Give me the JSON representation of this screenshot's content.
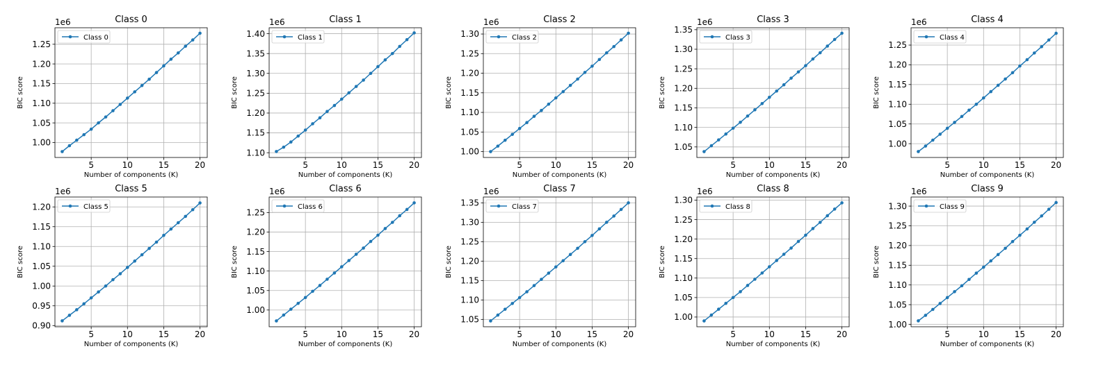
{
  "figure": {
    "line_color": "#1f77b4"
  },
  "chart_data": [
    {
      "type": "line",
      "title": "Class 0",
      "xlabel": "Number of components (K)",
      "ylabel": "BIC score",
      "offset_label": "1e6",
      "x": [
        1,
        2,
        3,
        4,
        5,
        6,
        7,
        8,
        9,
        10,
        11,
        12,
        13,
        14,
        15,
        16,
        17,
        18,
        19,
        20
      ],
      "xlim": [
        0,
        21
      ],
      "ylim": [
        0.962,
        1.292
      ],
      "xticks": [
        "5",
        "10",
        "15",
        "20"
      ],
      "xtick_values": [
        5,
        10,
        15,
        20
      ],
      "yticks": [
        "1.00",
        "1.05",
        "1.10",
        "1.15",
        "1.20",
        "1.25"
      ],
      "ytick_values": [
        1.0,
        1.05,
        1.1,
        1.15,
        1.2,
        1.25
      ],
      "grid": true,
      "legend_position": "upper left",
      "series": [
        {
          "name": "Class 0",
          "values": [
            0.977,
            0.992,
            1.006,
            1.02,
            1.034,
            1.05,
            1.065,
            1.081,
            1.097,
            1.113,
            1.129,
            1.145,
            1.161,
            1.178,
            1.195,
            1.212,
            1.228,
            1.245,
            1.261,
            1.278
          ]
        }
      ]
    },
    {
      "type": "line",
      "title": "Class 1",
      "xlabel": "Number of components (K)",
      "ylabel": "BIC score",
      "offset_label": "1e6",
      "x": [
        1,
        2,
        3,
        4,
        5,
        6,
        7,
        8,
        9,
        10,
        11,
        12,
        13,
        14,
        15,
        16,
        17,
        18,
        19,
        20
      ],
      "xlim": [
        0,
        21
      ],
      "ylim": [
        1.088,
        1.415
      ],
      "xticks": [
        "5",
        "10",
        "15",
        "20"
      ],
      "xtick_values": [
        5,
        10,
        15,
        20
      ],
      "yticks": [
        "1.10",
        "1.15",
        "1.20",
        "1.25",
        "1.30",
        "1.35",
        "1.40"
      ],
      "ytick_values": [
        1.1,
        1.15,
        1.2,
        1.25,
        1.3,
        1.35,
        1.4
      ],
      "grid": true,
      "legend_position": "upper left",
      "series": [
        {
          "name": "Class 1",
          "values": [
            1.103,
            1.114,
            1.127,
            1.142,
            1.157,
            1.173,
            1.188,
            1.204,
            1.219,
            1.235,
            1.251,
            1.267,
            1.283,
            1.3,
            1.317,
            1.334,
            1.35,
            1.368,
            1.385,
            1.402
          ]
        }
      ]
    },
    {
      "type": "line",
      "title": "Class 2",
      "xlabel": "Number of components (K)",
      "ylabel": "BIC score",
      "offset_label": "1e6",
      "x": [
        1,
        2,
        3,
        4,
        5,
        6,
        7,
        8,
        9,
        10,
        11,
        12,
        13,
        14,
        15,
        16,
        17,
        18,
        19,
        20
      ],
      "xlim": [
        0,
        21
      ],
      "ylim": [
        0.985,
        1.316
      ],
      "xticks": [
        "5",
        "10",
        "15",
        "20"
      ],
      "xtick_values": [
        5,
        10,
        15,
        20
      ],
      "yticks": [
        "1.00",
        "1.05",
        "1.10",
        "1.15",
        "1.20",
        "1.25",
        "1.30"
      ],
      "ytick_values": [
        1.0,
        1.05,
        1.1,
        1.15,
        1.2,
        1.25,
        1.3
      ],
      "grid": true,
      "legend_position": "upper left",
      "series": [
        {
          "name": "Class 2",
          "values": [
            1.0,
            1.014,
            1.029,
            1.044,
            1.059,
            1.074,
            1.09,
            1.105,
            1.121,
            1.137,
            1.153,
            1.169,
            1.185,
            1.202,
            1.218,
            1.235,
            1.252,
            1.268,
            1.285,
            1.302
          ]
        }
      ]
    },
    {
      "type": "line",
      "title": "Class 3",
      "xlabel": "Number of components (K)",
      "ylabel": "BIC score",
      "offset_label": "1e6",
      "x": [
        1,
        2,
        3,
        4,
        5,
        6,
        7,
        8,
        9,
        10,
        11,
        12,
        13,
        14,
        15,
        16,
        17,
        18,
        19,
        20
      ],
      "xlim": [
        0,
        21
      ],
      "ylim": [
        1.023,
        1.355
      ],
      "xticks": [
        "5",
        "10",
        "15",
        "20"
      ],
      "xtick_values": [
        5,
        10,
        15,
        20
      ],
      "yticks": [
        "1.05",
        "1.10",
        "1.15",
        "1.20",
        "1.25",
        "1.30",
        "1.35"
      ],
      "ytick_values": [
        1.05,
        1.1,
        1.15,
        1.2,
        1.25,
        1.3,
        1.35
      ],
      "grid": true,
      "legend_position": "upper left",
      "series": [
        {
          "name": "Class 3",
          "values": [
            1.038,
            1.053,
            1.068,
            1.083,
            1.098,
            1.113,
            1.129,
            1.145,
            1.161,
            1.177,
            1.193,
            1.209,
            1.226,
            1.242,
            1.258,
            1.275,
            1.291,
            1.308,
            1.325,
            1.341
          ]
        }
      ]
    },
    {
      "type": "line",
      "title": "Class 4",
      "xlabel": "Number of components (K)",
      "ylabel": "BIC score",
      "offset_label": "1e6",
      "x": [
        1,
        2,
        3,
        4,
        5,
        6,
        7,
        8,
        9,
        10,
        11,
        12,
        13,
        14,
        15,
        16,
        17,
        18,
        19,
        20
      ],
      "xlim": [
        0,
        21
      ],
      "ylim": [
        0.965,
        1.294
      ],
      "xticks": [
        "5",
        "10",
        "15",
        "20"
      ],
      "xtick_values": [
        5,
        10,
        15,
        20
      ],
      "yticks": [
        "1.00",
        "1.05",
        "1.10",
        "1.15",
        "1.20",
        "1.25"
      ],
      "ytick_values": [
        1.0,
        1.05,
        1.1,
        1.15,
        1.2,
        1.25
      ],
      "grid": true,
      "legend_position": "upper left",
      "series": [
        {
          "name": "Class 4",
          "values": [
            0.98,
            0.994,
            1.009,
            1.024,
            1.039,
            1.054,
            1.069,
            1.085,
            1.1,
            1.116,
            1.132,
            1.148,
            1.164,
            1.18,
            1.197,
            1.213,
            1.23,
            1.246,
            1.263,
            1.28
          ]
        }
      ]
    },
    {
      "type": "line",
      "title": "Class 5",
      "xlabel": "Number of components (K)",
      "ylabel": "BIC score",
      "offset_label": "1e6",
      "x": [
        1,
        2,
        3,
        4,
        5,
        6,
        7,
        8,
        9,
        10,
        11,
        12,
        13,
        14,
        15,
        16,
        17,
        18,
        19,
        20
      ],
      "xlim": [
        0,
        21
      ],
      "ylim": [
        0.897,
        1.225
      ],
      "xticks": [
        "5",
        "10",
        "15",
        "20"
      ],
      "xtick_values": [
        5,
        10,
        15,
        20
      ],
      "yticks": [
        "0.90",
        "0.95",
        "1.00",
        "1.05",
        "1.10",
        "1.15",
        "1.20"
      ],
      "ytick_values": [
        0.9,
        0.95,
        1.0,
        1.05,
        1.1,
        1.15,
        1.2
      ],
      "grid": true,
      "legend_position": "upper left",
      "series": [
        {
          "name": "Class 5",
          "values": [
            0.912,
            0.926,
            0.94,
            0.955,
            0.97,
            0.985,
            1.0,
            1.016,
            1.031,
            1.047,
            1.063,
            1.079,
            1.095,
            1.111,
            1.128,
            1.144,
            1.16,
            1.176,
            1.193,
            1.21
          ]
        }
      ]
    },
    {
      "type": "line",
      "title": "Class 6",
      "xlabel": "Number of components (K)",
      "ylabel": "BIC score",
      "offset_label": "1e6",
      "x": [
        1,
        2,
        3,
        4,
        5,
        6,
        7,
        8,
        9,
        10,
        11,
        12,
        13,
        14,
        15,
        16,
        17,
        18,
        19,
        20
      ],
      "xlim": [
        0,
        21
      ],
      "ylim": [
        0.957,
        1.29
      ],
      "xticks": [
        "5",
        "10",
        "15",
        "20"
      ],
      "xtick_values": [
        5,
        10,
        15,
        20
      ],
      "yticks": [
        "1.00",
        "1.05",
        "1.10",
        "1.15",
        "1.20",
        "1.25"
      ],
      "ytick_values": [
        1.0,
        1.05,
        1.1,
        1.15,
        1.2,
        1.25
      ],
      "grid": true,
      "legend_position": "upper left",
      "series": [
        {
          "name": "Class 6",
          "values": [
            0.972,
            0.987,
            1.002,
            1.017,
            1.032,
            1.048,
            1.063,
            1.079,
            1.095,
            1.111,
            1.127,
            1.143,
            1.159,
            1.176,
            1.192,
            1.209,
            1.225,
            1.242,
            1.258,
            1.275
          ]
        }
      ]
    },
    {
      "type": "line",
      "title": "Class 7",
      "xlabel": "Number of components (K)",
      "ylabel": "BIC score",
      "offset_label": "1e6",
      "x": [
        1,
        2,
        3,
        4,
        5,
        6,
        7,
        8,
        9,
        10,
        11,
        12,
        13,
        14,
        15,
        16,
        17,
        18,
        19,
        20
      ],
      "xlim": [
        0,
        21
      ],
      "ylim": [
        1.031,
        1.365
      ],
      "xticks": [
        "5",
        "10",
        "15",
        "20"
      ],
      "xtick_values": [
        5,
        10,
        15,
        20
      ],
      "yticks": [
        "1.05",
        "1.10",
        "1.15",
        "1.20",
        "1.25",
        "1.30",
        "1.35"
      ],
      "ytick_values": [
        1.05,
        1.1,
        1.15,
        1.2,
        1.25,
        1.3,
        1.35
      ],
      "grid": true,
      "legend_position": "upper left",
      "series": [
        {
          "name": "Class 7",
          "values": [
            1.046,
            1.061,
            1.076,
            1.091,
            1.106,
            1.121,
            1.137,
            1.153,
            1.169,
            1.185,
            1.201,
            1.217,
            1.233,
            1.25,
            1.266,
            1.283,
            1.3,
            1.316,
            1.333,
            1.35
          ]
        }
      ]
    },
    {
      "type": "line",
      "title": "Class 8",
      "xlabel": "Number of components (K)",
      "ylabel": "BIC score",
      "offset_label": "1e6",
      "x": [
        1,
        2,
        3,
        4,
        5,
        6,
        7,
        8,
        9,
        10,
        11,
        12,
        13,
        14,
        15,
        16,
        17,
        18,
        19,
        20
      ],
      "xlim": [
        0,
        21
      ],
      "ylim": [
        0.975,
        1.308
      ],
      "xticks": [
        "5",
        "10",
        "15",
        "20"
      ],
      "xtick_values": [
        5,
        10,
        15,
        20
      ],
      "yticks": [
        "1.00",
        "1.05",
        "1.10",
        "1.15",
        "1.20",
        "1.25",
        "1.30"
      ],
      "ytick_values": [
        1.0,
        1.05,
        1.1,
        1.15,
        1.2,
        1.25,
        1.3
      ],
      "grid": true,
      "legend_position": "upper left",
      "series": [
        {
          "name": "Class 8",
          "values": [
            0.99,
            1.005,
            1.02,
            1.035,
            1.05,
            1.065,
            1.081,
            1.097,
            1.113,
            1.129,
            1.145,
            1.161,
            1.177,
            1.194,
            1.21,
            1.227,
            1.243,
            1.26,
            1.277,
            1.293
          ]
        }
      ]
    },
    {
      "type": "line",
      "title": "Class 9",
      "xlabel": "Number of components (K)",
      "ylabel": "BIC score",
      "offset_label": "1e6",
      "x": [
        1,
        2,
        3,
        4,
        5,
        6,
        7,
        8,
        9,
        10,
        11,
        12,
        13,
        14,
        15,
        16,
        17,
        18,
        19,
        20
      ],
      "xlim": [
        0,
        21
      ],
      "ylim": [
        0.994,
        1.323
      ],
      "xticks": [
        "5",
        "10",
        "15",
        "20"
      ],
      "xtick_values": [
        5,
        10,
        15,
        20
      ],
      "yticks": [
        "1.00",
        "1.05",
        "1.10",
        "1.15",
        "1.20",
        "1.25",
        "1.30"
      ],
      "ytick_values": [
        1.0,
        1.05,
        1.1,
        1.15,
        1.2,
        1.25,
        1.3
      ],
      "grid": true,
      "legend_position": "upper left",
      "series": [
        {
          "name": "Class 9",
          "values": [
            1.009,
            1.023,
            1.038,
            1.053,
            1.068,
            1.083,
            1.098,
            1.114,
            1.13,
            1.145,
            1.161,
            1.177,
            1.193,
            1.21,
            1.226,
            1.242,
            1.259,
            1.275,
            1.292,
            1.309
          ]
        }
      ]
    }
  ]
}
